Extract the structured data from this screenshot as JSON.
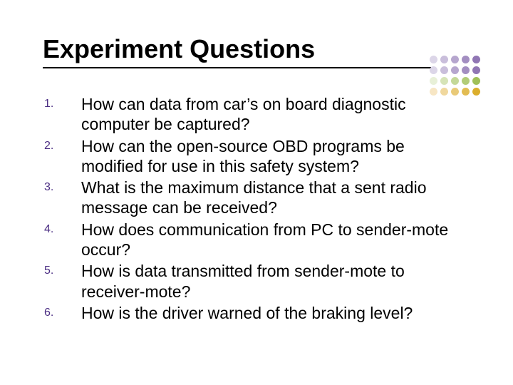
{
  "title": "Experiment Questions",
  "title_fontsize": 36,
  "title_color": "#000000",
  "underline_color": "#000000",
  "underline_width": 545,
  "number_color": "#4b2e83",
  "number_fontsize": 16,
  "body_fontsize": 23,
  "body_color": "#000000",
  "background": "#ffffff",
  "dot_colors": [
    "#dcd6e8",
    "#c9bedb",
    "#b6a6ce",
    "#a38ec1",
    "#9076b4",
    "#dcd6e8",
    "#c9bedb",
    "#b6a6ce",
    "#a38ec1",
    "#9076b4",
    "#e8f0d8",
    "#d6e4b8",
    "#c4d898",
    "#b2cc78",
    "#a0c058",
    "#f7e6c4",
    "#f0d89e",
    "#e9ca78",
    "#e2bc52",
    "#dbae2c"
  ],
  "items": [
    {
      "n": "1.",
      "text": "How can data from car’s on board diagnostic computer be captured?"
    },
    {
      "n": "2.",
      "text": "How can the open-source OBD programs be modified for use in this safety system?"
    },
    {
      "n": "3.",
      "text": "What is the maximum distance that a sent radio message can be received?"
    },
    {
      "n": "4.",
      "text": "How does communication from PC to sender-mote occur?"
    },
    {
      "n": "5.",
      "text": "How is data transmitted from sender-mote to receiver-mote?"
    },
    {
      "n": "6.",
      "text": "How is the driver warned of the braking level?"
    }
  ]
}
